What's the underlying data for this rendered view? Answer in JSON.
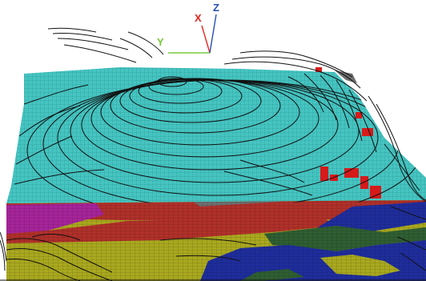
{
  "axes": {
    "x": {
      "label": "X",
      "color": "#e6231e"
    },
    "y": {
      "label": "Y",
      "color": "#78c83c"
    },
    "z": {
      "label": "Z",
      "color": "#2850b4"
    }
  },
  "colors": {
    "surface": "#45c4c1",
    "surface_grid": "#2a8f8c",
    "layer_top_gray": "#6e6e6e",
    "layer_magenta": "#a6249a",
    "layer_red": "#b0302a",
    "layer_darkgreen": "#2f5e32",
    "layer_green": "#4f8e3a",
    "layer_olive": "#a9a81f",
    "layer_blue": "#1f2d9c",
    "highlight_red": "#d61a1a",
    "contour": "#111111"
  },
  "scene": {
    "view_type": "3d-block-model",
    "icons": [
      "axis-triad-icon"
    ]
  }
}
